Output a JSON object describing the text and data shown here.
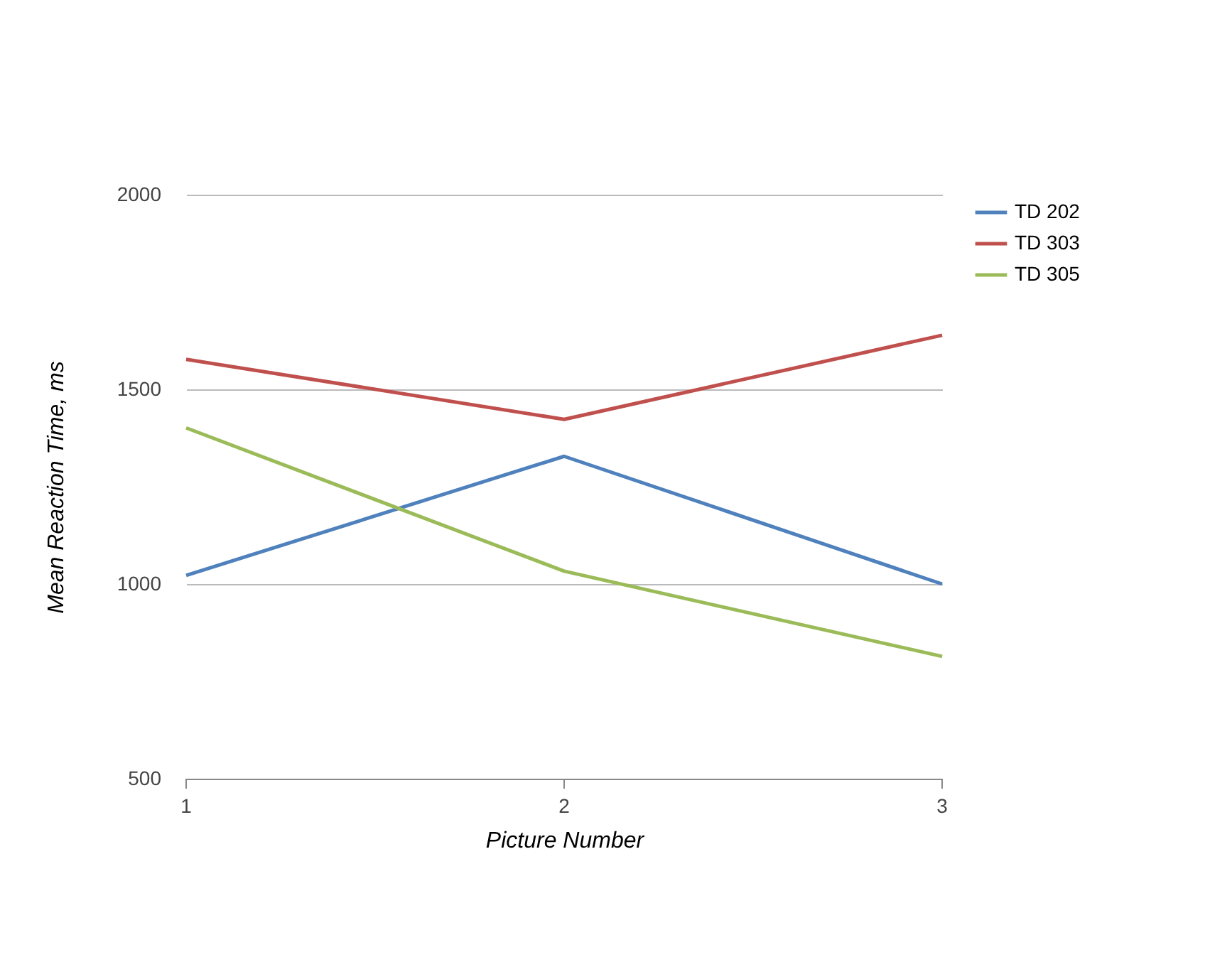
{
  "chart_data": {
    "type": "line",
    "xlabel": "Picture Number",
    "ylabel": "Mean Reaction Time, ms",
    "x": [
      1,
      2,
      3
    ],
    "xlim": [
      1,
      3
    ],
    "xticks": [
      1,
      2,
      3
    ],
    "ylim": [
      500,
      2000
    ],
    "yticks": [
      500,
      1000,
      1500,
      2000
    ],
    "grid": "y",
    "legend": "top right",
    "marker": "none",
    "line_style": "solid",
    "series": [
      {
        "name": "TD 202",
        "color": "#4f81bd",
        "values": [
          1022,
          1328,
          1000
        ]
      },
      {
        "name": "TD 303",
        "color": "#c0504d",
        "values": [
          1577,
          1423,
          1639
        ]
      },
      {
        "name": "TD 305",
        "color": "#9bbb59",
        "values": [
          1401,
          1033,
          814
        ]
      }
    ]
  }
}
